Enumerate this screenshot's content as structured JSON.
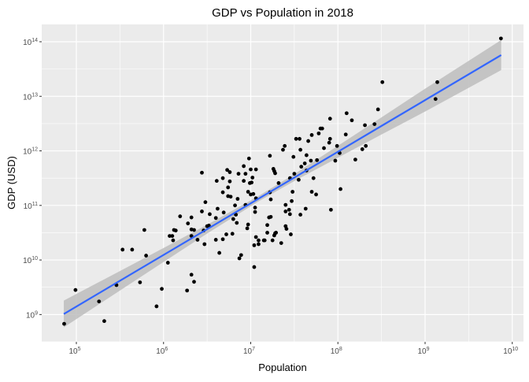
{
  "chart_data": {
    "type": "scatter",
    "title": "GDP vs Population in 2018",
    "xlabel": "Population",
    "ylabel": "GDP (USD)",
    "scale": "log10 on both axes; point values given as log10 exponents",
    "xlim_log10": [
      4.6,
      10.13
    ],
    "ylim_log10": [
      8.5,
      14.32
    ],
    "x_ticks": [
      {
        "base": "10",
        "exp": "5",
        "v": 5
      },
      {
        "base": "10",
        "exp": "6",
        "v": 6
      },
      {
        "base": "10",
        "exp": "7",
        "v": 7
      },
      {
        "base": "10",
        "exp": "8",
        "v": 8
      },
      {
        "base": "10",
        "exp": "9",
        "v": 9
      },
      {
        "base": "10",
        "exp": "10",
        "v": 10
      }
    ],
    "y_ticks": [
      {
        "base": "10",
        "exp": "9",
        "v": 9
      },
      {
        "base": "10",
        "exp": "10",
        "v": 10
      },
      {
        "base": "10",
        "exp": "11",
        "v": 11
      },
      {
        "base": "10",
        "exp": "12",
        "v": 12
      },
      {
        "base": "10",
        "exp": "13",
        "v": 13
      },
      {
        "base": "10",
        "exp": "14",
        "v": 14
      }
    ],
    "grid": true,
    "colors": {
      "panel": "#ebebeb",
      "grid": "#ffffff",
      "points": "#000000",
      "fit": "#3366ff",
      "band": "#bdbdbd"
    },
    "points": [
      [
        4.86,
        8.83
      ],
      [
        4.99,
        9.45
      ],
      [
        5.26,
        9.24
      ],
      [
        5.32,
        8.88
      ],
      [
        5.46,
        9.54
      ],
      [
        5.53,
        10.19
      ],
      [
        5.64,
        10.19
      ],
      [
        5.73,
        9.59
      ],
      [
        5.78,
        10.55
      ],
      [
        5.8,
        10.08
      ],
      [
        5.92,
        9.15
      ],
      [
        5.98,
        9.47
      ],
      [
        6.05,
        9.95
      ],
      [
        6.07,
        10.44
      ],
      [
        6.1,
        10.44
      ],
      [
        6.11,
        10.36
      ],
      [
        6.12,
        10.55
      ],
      [
        6.14,
        10.54
      ],
      [
        6.19,
        10.8
      ],
      [
        6.27,
        9.44
      ],
      [
        6.28,
        10.67
      ],
      [
        6.32,
        10.78
      ],
      [
        6.32,
        10.44
      ],
      [
        6.32,
        9.73
      ],
      [
        6.32,
        10.56
      ],
      [
        6.35,
        10.55
      ],
      [
        6.35,
        9.6
      ],
      [
        6.39,
        10.37
      ],
      [
        6.44,
        11.6
      ],
      [
        6.44,
        10.89
      ],
      [
        6.46,
        10.54
      ],
      [
        6.47,
        10.29
      ],
      [
        6.48,
        11.06
      ],
      [
        6.5,
        10.62
      ],
      [
        6.52,
        10.63
      ],
      [
        6.53,
        10.84
      ],
      [
        6.6,
        10.77
      ],
      [
        6.61,
        11.45
      ],
      [
        6.6,
        10.37
      ],
      [
        6.62,
        10.94
      ],
      [
        6.64,
        10.13
      ],
      [
        6.68,
        11.5
      ],
      [
        6.68,
        11.24
      ],
      [
        6.68,
        10.38
      ],
      [
        6.69,
        10.87
      ],
      [
        6.72,
        10.47
      ],
      [
        6.73,
        11.65
      ],
      [
        6.74,
        11.33
      ],
      [
        6.74,
        11.17
      ],
      [
        6.76,
        11.44
      ],
      [
        6.76,
        11.61
      ],
      [
        6.77,
        11.16
      ],
      [
        6.79,
        10.48
      ],
      [
        6.8,
        10.75
      ],
      [
        6.82,
        11.0
      ],
      [
        6.84,
        10.68
      ],
      [
        6.85,
        11.12
      ],
      [
        6.83,
        10.83
      ],
      [
        6.86,
        11.58
      ],
      [
        6.87,
        10.03
      ],
      [
        6.89,
        10.09
      ],
      [
        6.92,
        11.72
      ],
      [
        6.92,
        11.45
      ],
      [
        6.94,
        11.01
      ],
      [
        6.94,
        11.58
      ],
      [
        6.96,
        10.58
      ],
      [
        6.97,
        11.25
      ],
      [
        6.97,
        10.65
      ],
      [
        6.98,
        11.86
      ],
      [
        6.99,
        11.41
      ],
      [
        7.0,
        11.66
      ],
      [
        7.0,
        11.2
      ],
      [
        7.01,
        11.42
      ],
      [
        7.02,
        11.51
      ],
      [
        7.03,
        11.21
      ],
      [
        7.04,
        9.87
      ],
      [
        7.05,
        10.96
      ],
      [
        7.06,
        11.66
      ],
      [
        7.05,
        10.88
      ],
      [
        7.06,
        11.13
      ],
      [
        7.04,
        10.27
      ],
      [
        7.06,
        10.42
      ],
      [
        7.09,
        10.29
      ],
      [
        7.09,
        10.36
      ],
      [
        7.15,
        10.36
      ],
      [
        7.16,
        10.36
      ],
      [
        7.19,
        10.64
      ],
      [
        7.19,
        10.5
      ],
      [
        7.21,
        10.78
      ],
      [
        7.23,
        10.79
      ],
      [
        7.25,
        10.36
      ],
      [
        7.27,
        10.45
      ],
      [
        7.28,
        10.49
      ],
      [
        7.29,
        10.5
      ],
      [
        7.35,
        10.31
      ],
      [
        7.22,
        11.91
      ],
      [
        7.23,
        11.11
      ],
      [
        7.22,
        11.24
      ],
      [
        7.26,
        11.67
      ],
      [
        7.27,
        11.63
      ],
      [
        7.28,
        11.59
      ],
      [
        7.32,
        11.41
      ],
      [
        7.37,
        12.02
      ],
      [
        7.39,
        12.09
      ],
      [
        7.4,
        11.01
      ],
      [
        7.4,
        10.89
      ],
      [
        7.4,
        10.62
      ],
      [
        7.41,
        10.57
      ],
      [
        7.44,
        10.92
      ],
      [
        7.45,
        10.84
      ],
      [
        7.46,
        10.47
      ],
      [
        7.47,
        11.08
      ],
      [
        7.45,
        11.5
      ],
      [
        7.48,
        11.25
      ],
      [
        7.49,
        11.89
      ],
      [
        7.5,
        11.58
      ],
      [
        7.52,
        12.22
      ],
      [
        7.55,
        11.47
      ],
      [
        7.56,
        12.22
      ],
      [
        7.57,
        10.83
      ],
      [
        7.57,
        12.02
      ],
      [
        7.58,
        11.71
      ],
      [
        7.62,
        11.77
      ],
      [
        7.63,
        10.94
      ],
      [
        7.64,
        11.92
      ],
      [
        7.64,
        11.64
      ],
      [
        7.66,
        12.18
      ],
      [
        7.69,
        11.82
      ],
      [
        7.7,
        12.29
      ],
      [
        7.7,
        11.25
      ],
      [
        7.72,
        11.5
      ],
      [
        7.75,
        11.2
      ],
      [
        7.76,
        11.83
      ],
      [
        7.78,
        12.32
      ],
      [
        7.8,
        12.41
      ],
      [
        7.82,
        12.41
      ],
      [
        7.84,
        12.05
      ],
      [
        7.9,
        12.15
      ],
      [
        7.91,
        12.22
      ],
      [
        7.91,
        12.59
      ],
      [
        7.92,
        10.92
      ],
      [
        7.97,
        11.82
      ],
      [
        7.99,
        12.09
      ],
      [
        8.02,
        11.96
      ],
      [
        8.03,
        11.3
      ],
      [
        8.09,
        12.3
      ],
      [
        8.1,
        12.69
      ],
      [
        8.16,
        12.56
      ],
      [
        8.2,
        11.84
      ],
      [
        8.28,
        12.03
      ],
      [
        8.31,
        12.47
      ],
      [
        8.32,
        12.09
      ],
      [
        8.42,
        12.49
      ],
      [
        8.46,
        12.76
      ],
      [
        8.51,
        13.26
      ],
      [
        9.12,
        12.95
      ],
      [
        9.14,
        13.26
      ],
      [
        9.87,
        14.06
      ]
    ],
    "fit": {
      "method": "linear (lm) with 95% confidence band",
      "x": [
        4.856,
        5.5,
        6.0,
        6.5,
        7.1,
        7.5,
        8.0,
        8.5,
        9.0,
        9.873
      ],
      "y": [
        9.01,
        9.619,
        10.092,
        10.565,
        11.133,
        11.511,
        11.984,
        12.457,
        12.93,
        13.756
      ],
      "lower": [
        8.765,
        9.44,
        9.964,
        10.484,
        11.083,
        11.447,
        11.875,
        12.3,
        12.72,
        13.481
      ],
      "upper": [
        9.255,
        9.798,
        10.22,
        10.646,
        11.183,
        11.575,
        12.093,
        12.614,
        13.14,
        14.031
      ]
    }
  }
}
